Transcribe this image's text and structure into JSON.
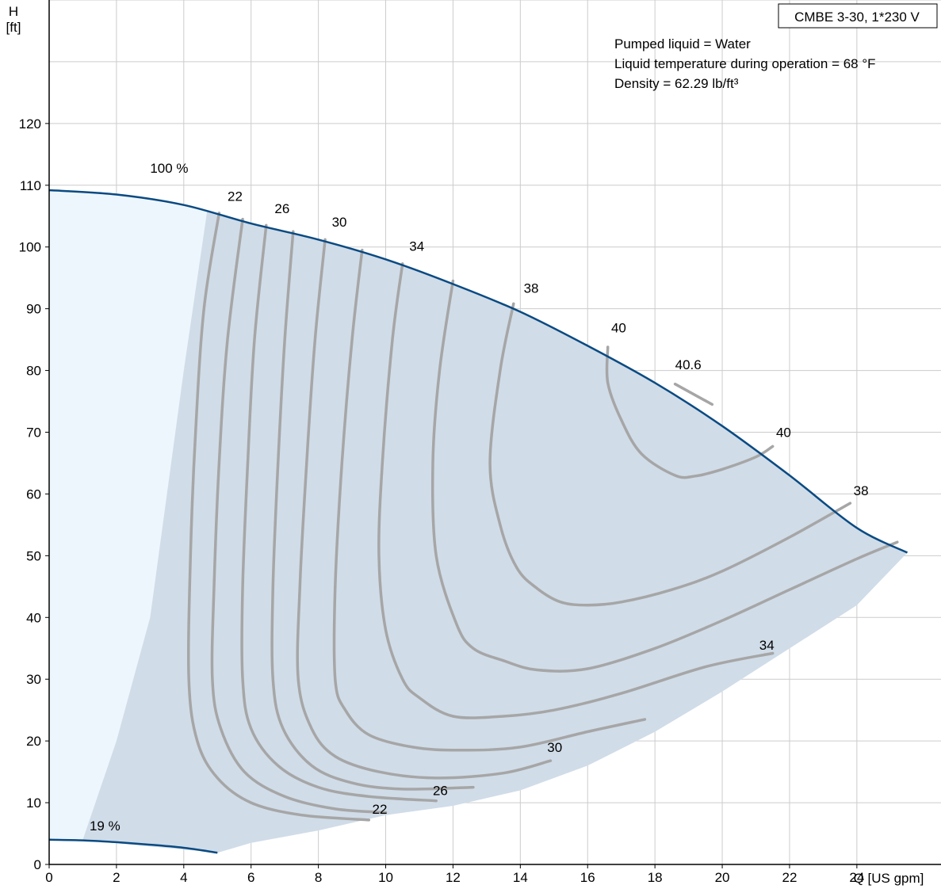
{
  "chart_data": {
    "type": "line",
    "title": "CMBE 3-30, 1*230 V",
    "xlabel": "Q [US gpm]",
    "ylabel": "H",
    "ylabel_unit": "[ft]",
    "xlim": [
      0,
      26.5
    ],
    "ylim": [
      0,
      140
    ],
    "x_ticks": [
      0,
      2,
      4,
      6,
      8,
      10,
      12,
      14,
      16,
      18,
      20,
      22,
      24
    ],
    "y_ticks": [
      0,
      10,
      20,
      30,
      40,
      50,
      60,
      70,
      80,
      90,
      100,
      110,
      120
    ],
    "grid": true,
    "notes": [
      "Pumped liquid = Water",
      "Liquid temperature during operation = 68 °F",
      "Density = 62.29 lb/ft³"
    ],
    "speed_curves": [
      {
        "label": "100 %",
        "points": [
          [
            0,
            109.2
          ],
          [
            2,
            108.5
          ],
          [
            4,
            106.8
          ],
          [
            6,
            103.8
          ],
          [
            8,
            101.2
          ],
          [
            10,
            98
          ],
          [
            12,
            94
          ],
          [
            14,
            89.5
          ],
          [
            16,
            84
          ],
          [
            18,
            78
          ],
          [
            20,
            71
          ],
          [
            22,
            63
          ],
          [
            24,
            54.5
          ],
          [
            25.5,
            50.5
          ]
        ],
        "label_at": [
          3,
          112
        ]
      },
      {
        "label": "19 %",
        "points": [
          [
            0,
            4
          ],
          [
            1,
            3.9
          ],
          [
            2,
            3.6
          ],
          [
            3,
            3.2
          ],
          [
            4,
            2.7
          ],
          [
            5,
            1.9
          ]
        ],
        "label_at": [
          1.2,
          5.5
        ]
      }
    ],
    "operating_envelope": [
      [
        0,
        109.2
      ],
      [
        2,
        108.5
      ],
      [
        4.7,
        106
      ],
      [
        6,
        103.8
      ],
      [
        8,
        101.2
      ],
      [
        10,
        98
      ],
      [
        12,
        94
      ],
      [
        14,
        89.5
      ],
      [
        16,
        84
      ],
      [
        18,
        78
      ],
      [
        20,
        71
      ],
      [
        22,
        63
      ],
      [
        24,
        54.5
      ],
      [
        25.5,
        50.5
      ],
      [
        24,
        42
      ],
      [
        22,
        35
      ],
      [
        20,
        28
      ],
      [
        18,
        21.5
      ],
      [
        16,
        16
      ],
      [
        14,
        12
      ],
      [
        12,
        9.5
      ],
      [
        10,
        8
      ],
      [
        8,
        5.5
      ],
      [
        6,
        3.5
      ],
      [
        5,
        1.9
      ],
      [
        4,
        2.7
      ],
      [
        2,
        3.6
      ],
      [
        0,
        4
      ]
    ],
    "full_speed_region": [
      [
        4.7,
        106
      ],
      [
        4,
        80
      ],
      [
        3.5,
        60
      ],
      [
        3,
        40
      ],
      [
        2,
        20
      ],
      [
        1,
        4
      ]
    ],
    "efficiency_curves": [
      {
        "label": "22",
        "points": [
          [
            5.05,
            105.5
          ],
          [
            4.6,
            90
          ],
          [
            4.35,
            70
          ],
          [
            4.2,
            50
          ],
          [
            4.15,
            30
          ],
          [
            4.4,
            20
          ],
          [
            5,
            14
          ],
          [
            6,
            10
          ],
          [
            7.5,
            8
          ],
          [
            9.5,
            7.2
          ]
        ],
        "label_at": [
          5.3,
          107.5
        ]
      },
      {
        "label": "",
        "points": [
          [
            5.75,
            104.5
          ],
          [
            5.3,
            85
          ],
          [
            5.05,
            65
          ],
          [
            4.9,
            45
          ],
          [
            4.85,
            30
          ],
          [
            5.1,
            22
          ],
          [
            5.8,
            15
          ],
          [
            7,
            11
          ],
          [
            8.5,
            9
          ],
          [
            10,
            8.4
          ]
        ]
      },
      {
        "label": "26",
        "points": [
          [
            6.45,
            103.5
          ],
          [
            6.1,
            85
          ],
          [
            5.9,
            65
          ],
          [
            5.75,
            45
          ],
          [
            5.75,
            30
          ],
          [
            6,
            22
          ],
          [
            6.8,
            16
          ],
          [
            8,
            12.5
          ],
          [
            9.5,
            11
          ],
          [
            11.5,
            10.3
          ]
        ],
        "label_at": [
          6.7,
          105.5
        ]
      },
      {
        "label": "",
        "points": [
          [
            7.25,
            102.5
          ],
          [
            7,
            85
          ],
          [
            6.8,
            65
          ],
          [
            6.65,
            45
          ],
          [
            6.65,
            30
          ],
          [
            6.95,
            22
          ],
          [
            7.8,
            16
          ],
          [
            9,
            13.2
          ],
          [
            10.5,
            12.2
          ],
          [
            12.6,
            12.5
          ]
        ]
      },
      {
        "label": "30",
        "points": [
          [
            8.2,
            101.2
          ],
          [
            7.9,
            85
          ],
          [
            7.65,
            65
          ],
          [
            7.45,
            45
          ],
          [
            7.4,
            30
          ],
          [
            7.8,
            22
          ],
          [
            8.5,
            17.5
          ],
          [
            9.8,
            15
          ],
          [
            11.5,
            14
          ],
          [
            13.5,
            14.8
          ],
          [
            14.9,
            16.8
          ]
        ],
        "label_at": [
          8.4,
          103.3
        ]
      },
      {
        "label": "",
        "points": [
          [
            9.3,
            99.5
          ],
          [
            9,
            85
          ],
          [
            8.7,
            65
          ],
          [
            8.5,
            45
          ],
          [
            8.5,
            30
          ],
          [
            8.8,
            25
          ],
          [
            9.5,
            21
          ],
          [
            10.8,
            19
          ],
          [
            12.2,
            18.5
          ],
          [
            14,
            19
          ],
          [
            16,
            21.5
          ],
          [
            17.7,
            23.5
          ]
        ]
      },
      {
        "label": "34",
        "points": [
          [
            10.5,
            97.3
          ],
          [
            10.2,
            85
          ],
          [
            9.9,
            65
          ],
          [
            9.8,
            50
          ],
          [
            10,
            38
          ],
          [
            10.5,
            30
          ],
          [
            11,
            27
          ],
          [
            12,
            24
          ],
          [
            13.5,
            24
          ],
          [
            15,
            25
          ],
          [
            17,
            27.7
          ],
          [
            19.5,
            32
          ],
          [
            21.5,
            34.2
          ]
        ],
        "label_at": [
          10.7,
          99.4
        ]
      },
      {
        "label": "",
        "points": [
          [
            12,
            94.5
          ],
          [
            11.6,
            80
          ],
          [
            11.4,
            65
          ],
          [
            11.5,
            50
          ],
          [
            12.1,
            39
          ],
          [
            12.6,
            35
          ],
          [
            13.5,
            33
          ],
          [
            14.5,
            31.5
          ],
          [
            16,
            31.7
          ],
          [
            18,
            35
          ],
          [
            20,
            39.5
          ],
          [
            22,
            44.5
          ],
          [
            24,
            49.5
          ],
          [
            25.2,
            52.2
          ]
        ]
      },
      {
        "label": "38",
        "points": [
          [
            13.8,
            90.8
          ],
          [
            13.4,
            80
          ],
          [
            13.1,
            65
          ],
          [
            13.4,
            55
          ],
          [
            13.9,
            48
          ],
          [
            14.5,
            44.7
          ],
          [
            15.2,
            42.5
          ],
          [
            16,
            42
          ],
          [
            17,
            42.5
          ],
          [
            18.5,
            44.5
          ],
          [
            20,
            47.5
          ],
          [
            22,
            53
          ],
          [
            23.8,
            58.5
          ]
        ],
        "label_at": [
          14.1,
          92.6
        ]
      },
      {
        "label": "40",
        "points": [
          [
            16.6,
            83.8
          ],
          [
            16.6,
            78
          ],
          [
            17,
            72
          ],
          [
            17.6,
            66.5
          ],
          [
            18.6,
            63
          ],
          [
            19.2,
            62.9
          ],
          [
            20,
            64
          ],
          [
            21,
            66
          ],
          [
            21.5,
            67.7
          ]
        ],
        "label_at": [
          16.7,
          86.2
        ]
      },
      {
        "label": "40.6",
        "points": [
          [
            18.6,
            77.8
          ],
          [
            19.7,
            74.5
          ]
        ],
        "label_at": [
          18.6,
          80.2
        ]
      }
    ],
    "side_labels": [
      {
        "label": "40",
        "at": [
          21.6,
          69.2
        ]
      },
      {
        "label": "38",
        "at": [
          23.9,
          59.8
        ]
      },
      {
        "label": "34",
        "at": [
          21.1,
          34.8
        ]
      },
      {
        "label": "30",
        "at": [
          14.8,
          18.2
        ]
      },
      {
        "label": "26",
        "at": [
          11.4,
          11.2
        ]
      },
      {
        "label": "22",
        "at": [
          9.6,
          8.2
        ]
      }
    ]
  }
}
